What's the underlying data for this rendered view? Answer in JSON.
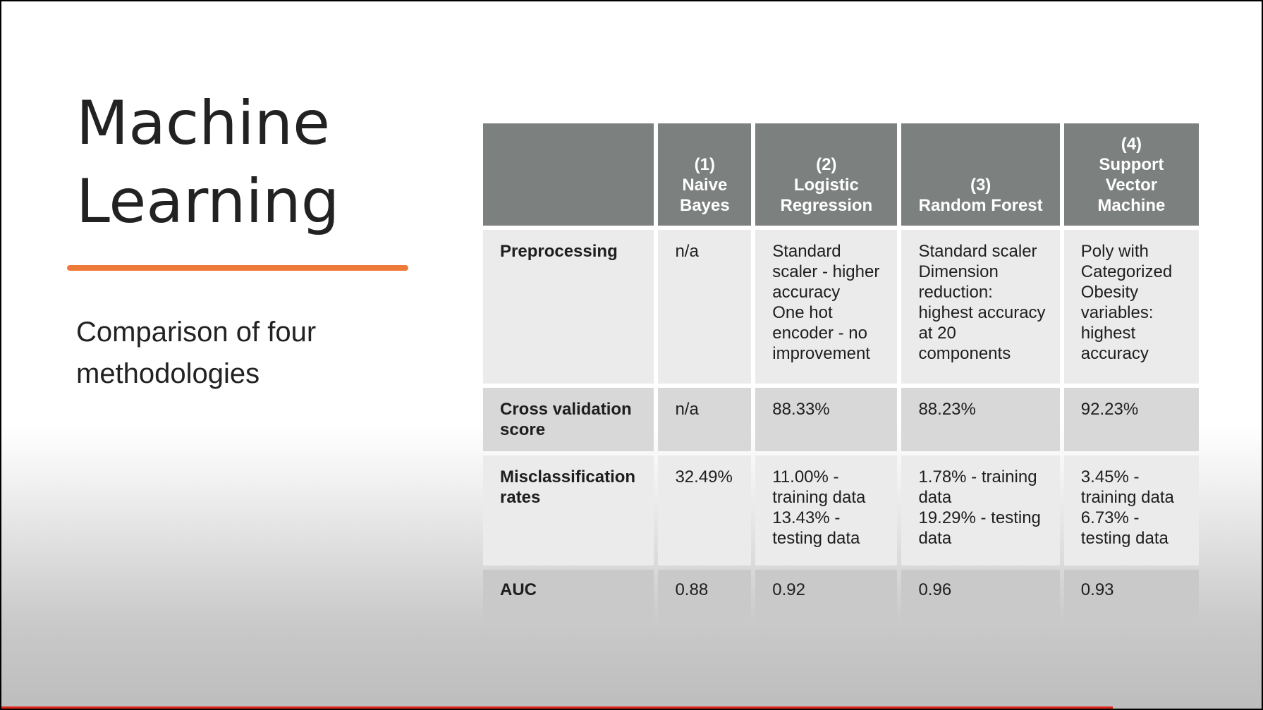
{
  "slide": {
    "title_lines": [
      "Machine",
      "Learning"
    ],
    "subtitle": "Comparison of four methodologies",
    "accent_color": "#ee7a3a"
  },
  "table": {
    "headers": [
      [],
      [
        "(1)",
        "Naive",
        "Bayes"
      ],
      [
        "(2)",
        "Logistic",
        "Regression"
      ],
      [
        "(3)",
        "Random Forest"
      ],
      [
        "(4)",
        "Support",
        "Vector",
        "Machine"
      ]
    ],
    "rows": [
      {
        "label": "Preprocessing",
        "cells": [
          [
            "n/a"
          ],
          [
            "Standard",
            "scaler - higher",
            "accuracy",
            "One hot",
            "encoder - no",
            "improvement"
          ],
          [
            "Standard scaler",
            "Dimension",
            "reduction:",
            "highest accuracy",
            "at 20",
            "components"
          ],
          [
            "Poly with",
            "Categorized",
            "Obesity",
            "variables:",
            "highest",
            "accuracy"
          ]
        ]
      },
      {
        "label": "Cross validation score",
        "cells": [
          [
            "n/a"
          ],
          [
            "88.33%"
          ],
          [
            "88.23%"
          ],
          [
            "92.23%"
          ]
        ]
      },
      {
        "label": "Misclassification rates",
        "cells": [
          [
            "32.49%"
          ],
          [
            "11.00% -",
            "training data",
            "13.43% -",
            "testing data"
          ],
          [
            "1.78% - training",
            "data",
            "19.29% - testing",
            "data"
          ],
          [
            "3.45% -",
            "training data",
            "6.73% -",
            "testing data"
          ]
        ]
      },
      {
        "label": "AUC",
        "cells": [
          [
            "0.88"
          ],
          [
            "0.92"
          ],
          [
            "0.96"
          ],
          [
            "0.93"
          ]
        ]
      }
    ],
    "header_color": "#7c807f"
  },
  "video_progress": {
    "fraction": 0.88,
    "color": "#e0241b"
  }
}
